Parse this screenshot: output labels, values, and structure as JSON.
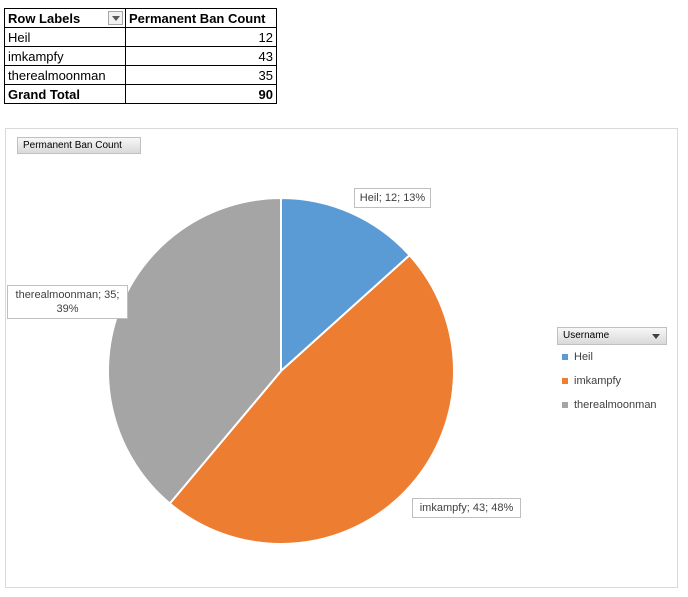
{
  "pivot": {
    "header": {
      "row_labels": "Row Labels",
      "value_label": "Permanent Ban Count"
    },
    "rows": [
      {
        "label": "Heil",
        "value": "12"
      },
      {
        "label": "imkampfy",
        "value": "43"
      },
      {
        "label": "therealmoonman",
        "value": "35"
      }
    ],
    "total": {
      "label": "Grand Total",
      "value": "90"
    }
  },
  "chart_data": {
    "type": "pie",
    "field_button": "Permanent Ban Count",
    "legend_title": "Username",
    "legend_placement": "right",
    "slices": [
      {
        "name": "Heil",
        "value": 12,
        "percent": "13%",
        "label": "Heil; 12; 13%",
        "color": "#5b9bd5"
      },
      {
        "name": "imkampfy",
        "value": 43,
        "percent": "48%",
        "label": "imkampfy; 43; 48%",
        "color": "#ed7d31"
      },
      {
        "name": "therealmoonman",
        "value": 35,
        "percent": "39%",
        "label_line1": "therealmoonman; 35;",
        "label_line2": "39%",
        "color": "#a5a5a5"
      }
    ]
  },
  "icons": {
    "row_labels_filter": "filter-dropdown-icon",
    "legend_dropdown": "chevron-down-icon"
  }
}
